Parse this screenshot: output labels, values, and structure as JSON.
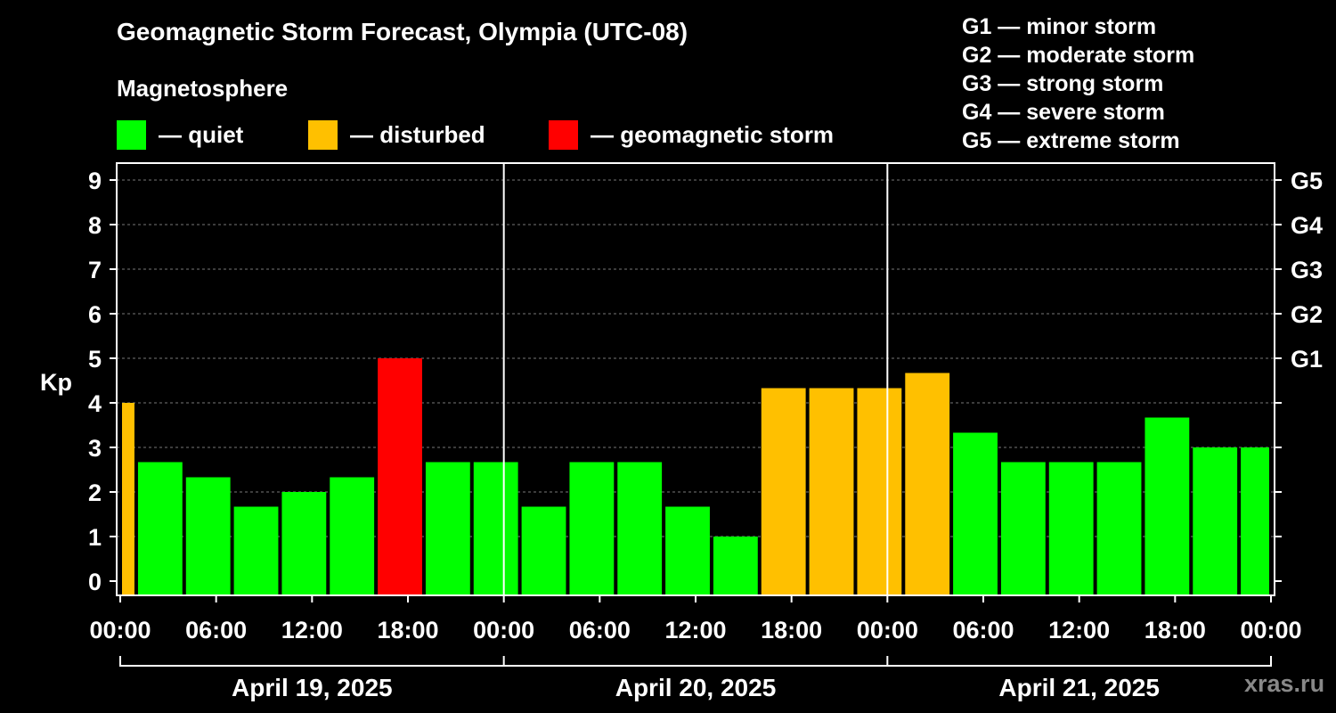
{
  "header": {
    "title": "Geomagnetic Storm Forecast, Olympia (UTC-08)",
    "subtitle": "Magnetosphere"
  },
  "legend": [
    {
      "label": "— quiet",
      "color": "#00ff00"
    },
    {
      "label": "— disturbed",
      "color": "#ffc000"
    },
    {
      "label": "— geomagnetic storm",
      "color": "#ff0000"
    }
  ],
  "g_scale": [
    "G1 — minor storm",
    "G2 — moderate storm",
    "G3 — strong storm",
    "G4 — severe storm",
    "G5 — extreme storm"
  ],
  "brand": "xras.ru",
  "chart_data": {
    "type": "bar",
    "ylabel": "Kp",
    "ylim": [
      0,
      9
    ],
    "yticks": [
      "0",
      "1",
      "2",
      "3",
      "4",
      "5",
      "6",
      "7",
      "8",
      "9"
    ],
    "right_axis": [
      {
        "kp": 5,
        "label": "G1"
      },
      {
        "kp": 6,
        "label": "G2"
      },
      {
        "kp": 7,
        "label": "G3"
      },
      {
        "kp": 8,
        "label": "G4"
      },
      {
        "kp": 9,
        "label": "G5"
      }
    ],
    "xlim_hours": [
      0,
      72
    ],
    "xticks": [
      {
        "hour": 0,
        "label": "00:00"
      },
      {
        "hour": 6,
        "label": "06:00"
      },
      {
        "hour": 12,
        "label": "12:00"
      },
      {
        "hour": 18,
        "label": "18:00"
      },
      {
        "hour": 24,
        "label": "00:00"
      },
      {
        "hour": 30,
        "label": "06:00"
      },
      {
        "hour": 36,
        "label": "12:00"
      },
      {
        "hour": 42,
        "label": "18:00"
      },
      {
        "hour": 48,
        "label": "00:00"
      },
      {
        "hour": 54,
        "label": "06:00"
      },
      {
        "hour": 60,
        "label": "12:00"
      },
      {
        "hour": 66,
        "label": "18:00"
      },
      {
        "hour": 72,
        "label": "00:00"
      }
    ],
    "days": [
      {
        "label": "April 19, 2025",
        "start": 0,
        "end": 24
      },
      {
        "label": "April 20, 2025",
        "start": 24,
        "end": 48
      },
      {
        "label": "April 21, 2025",
        "start": 48,
        "end": 72
      }
    ],
    "colors": {
      "quiet": "#00ff00",
      "disturbed": "#ffc000",
      "storm": "#ff0000"
    },
    "bars": [
      {
        "start": 0,
        "end": 1,
        "kp": 4.0,
        "level": "disturbed"
      },
      {
        "start": 1,
        "end": 4,
        "kp": 2.67,
        "level": "quiet"
      },
      {
        "start": 4,
        "end": 7,
        "kp": 2.33,
        "level": "quiet"
      },
      {
        "start": 7,
        "end": 10,
        "kp": 1.67,
        "level": "quiet"
      },
      {
        "start": 10,
        "end": 13,
        "kp": 2.0,
        "level": "quiet"
      },
      {
        "start": 13,
        "end": 16,
        "kp": 2.33,
        "level": "quiet"
      },
      {
        "start": 16,
        "end": 19,
        "kp": 5.0,
        "level": "storm"
      },
      {
        "start": 19,
        "end": 22,
        "kp": 2.67,
        "level": "quiet"
      },
      {
        "start": 22,
        "end": 25,
        "kp": 2.67,
        "level": "quiet"
      },
      {
        "start": 25,
        "end": 28,
        "kp": 1.67,
        "level": "quiet"
      },
      {
        "start": 28,
        "end": 31,
        "kp": 2.67,
        "level": "quiet"
      },
      {
        "start": 31,
        "end": 34,
        "kp": 2.67,
        "level": "quiet"
      },
      {
        "start": 34,
        "end": 37,
        "kp": 1.67,
        "level": "quiet"
      },
      {
        "start": 37,
        "end": 40,
        "kp": 1.0,
        "level": "quiet"
      },
      {
        "start": 40,
        "end": 43,
        "kp": 4.33,
        "level": "disturbed"
      },
      {
        "start": 43,
        "end": 46,
        "kp": 4.33,
        "level": "disturbed"
      },
      {
        "start": 46,
        "end": 49,
        "kp": 4.33,
        "level": "disturbed"
      },
      {
        "start": 49,
        "end": 52,
        "kp": 4.67,
        "level": "disturbed"
      },
      {
        "start": 52,
        "end": 55,
        "kp": 3.33,
        "level": "quiet"
      },
      {
        "start": 55,
        "end": 58,
        "kp": 2.67,
        "level": "quiet"
      },
      {
        "start": 58,
        "end": 61,
        "kp": 2.67,
        "level": "quiet"
      },
      {
        "start": 61,
        "end": 64,
        "kp": 2.67,
        "level": "quiet"
      },
      {
        "start": 64,
        "end": 67,
        "kp": 3.67,
        "level": "quiet"
      },
      {
        "start": 67,
        "end": 70,
        "kp": 3.0,
        "level": "quiet"
      },
      {
        "start": 70,
        "end": 72,
        "kp": 3.0,
        "level": "quiet"
      }
    ]
  }
}
